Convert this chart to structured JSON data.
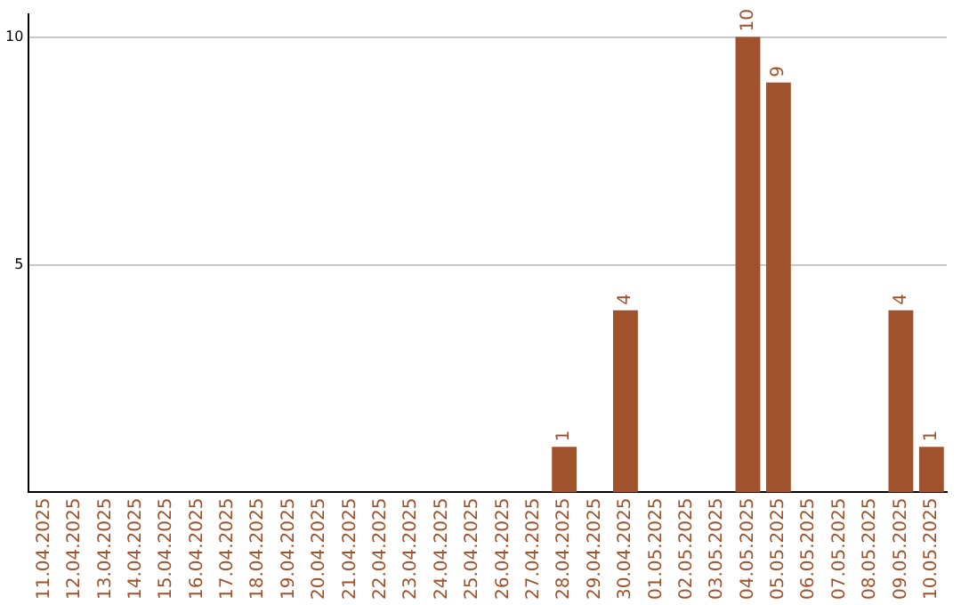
{
  "chart_data": {
    "type": "bar",
    "categories": [
      "11.04.2025",
      "12.04.2025",
      "13.04.2025",
      "14.04.2025",
      "15.04.2025",
      "16.04.2025",
      "17.04.2025",
      "18.04.2025",
      "19.04.2025",
      "20.04.2025",
      "21.04.2025",
      "22.04.2025",
      "23.04.2025",
      "24.04.2025",
      "25.04.2025",
      "26.04.2025",
      "27.04.2025",
      "28.04.2025",
      "29.04.2025",
      "30.04.2025",
      "01.05.2025",
      "02.05.2025",
      "03.05.2025",
      "04.05.2025",
      "05.05.2025",
      "06.05.2025",
      "07.05.2025",
      "08.05.2025",
      "09.05.2025",
      "10.05.2025"
    ],
    "values": [
      0,
      0,
      0,
      0,
      0,
      0,
      0,
      0,
      0,
      0,
      0,
      0,
      0,
      0,
      0,
      0,
      0,
      1,
      0,
      4,
      0,
      0,
      0,
      10,
      9,
      0,
      0,
      0,
      4,
      1
    ],
    "value_labels": [
      null,
      null,
      null,
      null,
      null,
      null,
      null,
      null,
      null,
      null,
      null,
      null,
      null,
      null,
      null,
      null,
      null,
      "1",
      null,
      "4",
      null,
      null,
      null,
      "10",
      "9",
      null,
      null,
      null,
      "4",
      "1"
    ],
    "color": "#a0522d",
    "ylim": [
      0,
      10.5
    ],
    "yticks": [
      5,
      10
    ],
    "grid": "y",
    "legend": false
  }
}
